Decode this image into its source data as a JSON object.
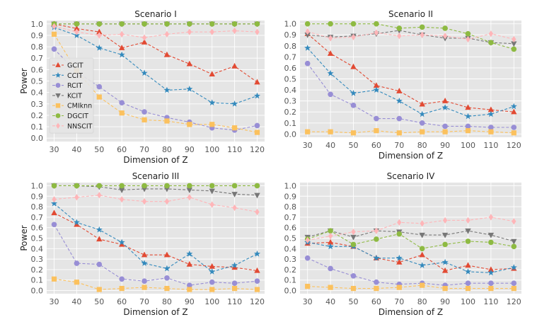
{
  "styles": {
    "GCIT": {
      "color": "#e24a33",
      "marker": "triangle-up-icon"
    },
    "CCIT": {
      "color": "#348abd",
      "marker": "star-icon"
    },
    "RCIT": {
      "color": "#988ed5",
      "marker": "circle-icon"
    },
    "KCIT": {
      "color": "#777777",
      "marker": "triangle-down-icon"
    },
    "CMIknn": {
      "color": "#fbc15e",
      "marker": "square-icon"
    },
    "DGCIT": {
      "color": "#8eba42",
      "marker": "circle-icon"
    },
    "NNSCIT": {
      "color": "#ffb5b8",
      "marker": "diamond-icon"
    }
  },
  "chart_data": [
    {
      "type": "line",
      "title": "Scenario I",
      "xlabel": "Dimension of Z",
      "ylabel": "Power",
      "x": [
        30,
        40,
        50,
        60,
        70,
        80,
        90,
        100,
        110,
        120
      ],
      "ylim": [
        0,
        1.0
      ],
      "yticks": [
        "0.0",
        "0.1",
        "0.2",
        "0.3",
        "0.4",
        "0.5",
        "0.6",
        "0.7",
        "0.8",
        "0.9",
        "1.0"
      ],
      "grid": true,
      "legend": "left",
      "series": [
        {
          "name": "GCIT",
          "values": [
            1.0,
            0.96,
            0.93,
            0.79,
            0.84,
            0.73,
            0.65,
            0.56,
            0.63,
            0.49
          ]
        },
        {
          "name": "CCIT",
          "values": [
            0.97,
            0.9,
            0.79,
            0.73,
            0.57,
            0.42,
            0.43,
            0.31,
            0.3,
            0.37
          ]
        },
        {
          "name": "RCIT",
          "values": [
            0.78,
            0.58,
            0.45,
            0.31,
            0.23,
            0.18,
            0.14,
            0.09,
            0.07,
            0.11
          ]
        },
        {
          "name": "KCIT",
          "values": [
            1.0,
            1.0,
            1.0,
            1.0,
            1.0,
            1.0,
            1.0,
            1.0,
            1.0,
            1.0
          ]
        },
        {
          "name": "CMIknn",
          "values": [
            0.91,
            0.59,
            0.36,
            0.22,
            0.16,
            0.15,
            0.12,
            0.12,
            0.09,
            0.05
          ]
        },
        {
          "name": "DGCIT",
          "values": [
            1.0,
            1.0,
            1.0,
            1.0,
            1.0,
            1.0,
            1.0,
            1.0,
            1.0,
            1.0
          ]
        },
        {
          "name": "NNSCIT",
          "values": [
            0.98,
            0.93,
            0.9,
            0.91,
            0.88,
            0.91,
            0.93,
            0.93,
            0.94,
            0.93
          ]
        }
      ]
    },
    {
      "type": "line",
      "title": "Scenario II",
      "xlabel": "Dimension of Z",
      "ylabel": "",
      "x": [
        30,
        40,
        50,
        60,
        70,
        80,
        90,
        100,
        110,
        120
      ],
      "ylim": [
        0,
        1.0
      ],
      "yticks": [
        "0.0",
        "0.1",
        "0.2",
        "0.3",
        "0.4",
        "0.5",
        "0.6",
        "0.7",
        "0.8",
        "0.9",
        "1.0"
      ],
      "grid": true,
      "series": [
        {
          "name": "GCIT",
          "values": [
            0.91,
            0.73,
            0.61,
            0.44,
            0.39,
            0.27,
            0.3,
            0.24,
            0.22,
            0.2
          ]
        },
        {
          "name": "CCIT",
          "values": [
            0.78,
            0.55,
            0.37,
            0.4,
            0.3,
            0.18,
            0.24,
            0.16,
            0.18,
            0.25
          ]
        },
        {
          "name": "RCIT",
          "values": [
            0.64,
            0.36,
            0.26,
            0.14,
            0.14,
            0.1,
            0.07,
            0.07,
            0.06,
            0.06
          ]
        },
        {
          "name": "KCIT",
          "values": [
            0.9,
            0.88,
            0.89,
            0.91,
            0.94,
            0.9,
            0.87,
            0.87,
            0.83,
            0.82
          ]
        },
        {
          "name": "CMIknn",
          "values": [
            0.02,
            0.02,
            0.01,
            0.03,
            0.01,
            0.02,
            0.02,
            0.03,
            0.02,
            0.01
          ]
        },
        {
          "name": "DGCIT",
          "values": [
            1.0,
            1.0,
            1.0,
            1.0,
            0.96,
            0.97,
            0.96,
            0.91,
            0.83,
            0.77
          ]
        },
        {
          "name": "NNSCIT",
          "values": [
            0.93,
            0.87,
            0.88,
            0.92,
            0.89,
            0.9,
            0.89,
            0.86,
            0.91,
            0.86
          ]
        }
      ]
    },
    {
      "type": "line",
      "title": "Scenario III",
      "xlabel": "Dimension of Z",
      "ylabel": "Power",
      "x": [
        30,
        40,
        50,
        60,
        70,
        80,
        90,
        100,
        110,
        120
      ],
      "ylim": [
        0,
        1.0
      ],
      "yticks": [
        "0.0",
        "0.1",
        "0.2",
        "0.3",
        "0.4",
        "0.5",
        "0.6",
        "0.7",
        "0.8",
        "0.9",
        "1.0"
      ],
      "grid": true,
      "series": [
        {
          "name": "GCIT",
          "values": [
            0.74,
            0.63,
            0.49,
            0.44,
            0.34,
            0.34,
            0.25,
            0.23,
            0.22,
            0.19
          ]
        },
        {
          "name": "CCIT",
          "values": [
            0.83,
            0.65,
            0.58,
            0.46,
            0.26,
            0.21,
            0.35,
            0.18,
            0.24,
            0.35
          ]
        },
        {
          "name": "RCIT",
          "values": [
            0.63,
            0.26,
            0.25,
            0.11,
            0.09,
            0.12,
            0.05,
            0.08,
            0.07,
            0.09
          ]
        },
        {
          "name": "KCIT",
          "values": [
            1.0,
            1.0,
            0.99,
            0.96,
            0.97,
            0.97,
            0.96,
            0.95,
            0.92,
            0.91
          ]
        },
        {
          "name": "CMIknn",
          "values": [
            0.11,
            0.08,
            0.01,
            0.02,
            0.03,
            0.02,
            0.01,
            0.01,
            0.02,
            0.01
          ]
        },
        {
          "name": "DGCIT",
          "values": [
            1.0,
            1.0,
            1.0,
            1.0,
            1.0,
            1.0,
            1.0,
            1.0,
            1.0,
            1.0
          ]
        },
        {
          "name": "NNSCIT",
          "values": [
            0.87,
            0.89,
            0.91,
            0.87,
            0.85,
            0.85,
            0.89,
            0.82,
            0.79,
            0.75
          ]
        }
      ]
    },
    {
      "type": "line",
      "title": "Scenario IV",
      "xlabel": "Dimension of Z",
      "ylabel": "",
      "x": [
        30,
        40,
        50,
        60,
        70,
        80,
        90,
        100,
        110,
        120
      ],
      "ylim": [
        0,
        1.0
      ],
      "yticks": [
        "0.0",
        "0.1",
        "0.2",
        "0.3",
        "0.4",
        "0.5",
        "0.6",
        "0.7",
        "0.8",
        "0.9",
        "1.0"
      ],
      "grid": true,
      "series": [
        {
          "name": "GCIT",
          "values": [
            0.45,
            0.46,
            0.42,
            0.31,
            0.27,
            0.34,
            0.19,
            0.24,
            0.2,
            0.21
          ]
        },
        {
          "name": "CCIT",
          "values": [
            0.46,
            0.42,
            0.42,
            0.31,
            0.31,
            0.24,
            0.27,
            0.18,
            0.17,
            0.22
          ]
        },
        {
          "name": "RCIT",
          "values": [
            0.31,
            0.21,
            0.14,
            0.08,
            0.06,
            0.07,
            0.05,
            0.07,
            0.07,
            0.07
          ]
        },
        {
          "name": "KCIT",
          "values": [
            0.51,
            0.57,
            0.51,
            0.57,
            0.56,
            0.53,
            0.53,
            0.57,
            0.53,
            0.47
          ]
        },
        {
          "name": "CMIknn",
          "values": [
            0.04,
            0.03,
            0.02,
            0.02,
            0.03,
            0.05,
            0.02,
            0.02,
            0.02,
            0.02
          ]
        },
        {
          "name": "DGCIT",
          "values": [
            0.49,
            0.57,
            0.44,
            0.49,
            0.54,
            0.4,
            0.44,
            0.47,
            0.46,
            0.42
          ]
        },
        {
          "name": "NNSCIT",
          "values": [
            0.48,
            0.52,
            0.56,
            0.57,
            0.65,
            0.64,
            0.67,
            0.67,
            0.7,
            0.66
          ]
        }
      ]
    }
  ]
}
